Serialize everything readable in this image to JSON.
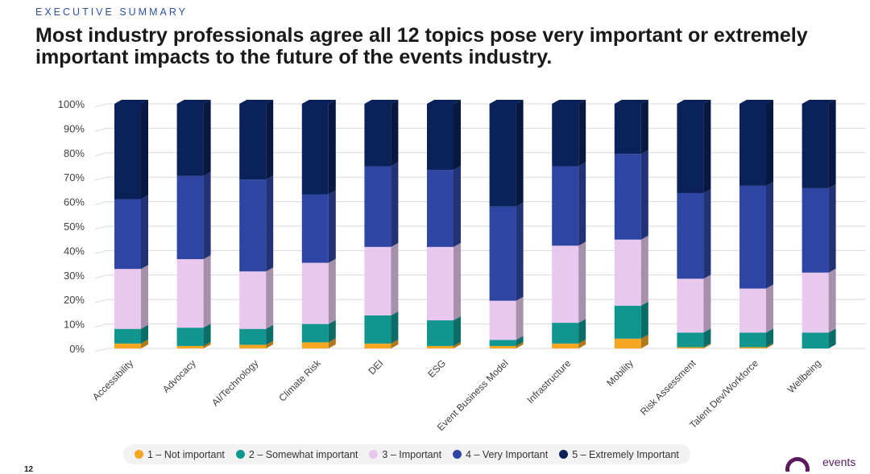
{
  "header": {
    "eyebrow": "EXECUTIVE SUMMARY",
    "headline": "Most industry professionals agree all 12 topics pose very important or extremely important impacts to the future of the events industry."
  },
  "page_number": "12",
  "logo": {
    "text": "events"
  },
  "chart_data": {
    "type": "bar",
    "stacked": true,
    "percent": true,
    "categories": [
      "Accessibility",
      "Advocacy",
      "AI/Technology",
      "Climate Risk",
      "DEI",
      "ESG",
      "Event Business Model",
      "Infrastructure",
      "Mobility",
      "Risk Assessment",
      "Talent Dev/Workforce",
      "Wellbeing"
    ],
    "y_ticks": [
      "0%",
      "10%",
      "20%",
      "30%",
      "40%",
      "50%",
      "60%",
      "70%",
      "80%",
      "90%",
      "100%"
    ],
    "ylim": [
      0,
      100
    ],
    "grid": true,
    "legend_position": "bottom",
    "series": [
      {
        "name": "1 – Not important",
        "color": "#f5a623",
        "values": [
          2,
          1,
          1.5,
          2.5,
          2,
          1,
          1,
          2,
          4,
          0.5,
          0.5,
          0
        ]
      },
      {
        "name": "2 – Somewhat important",
        "color": "#11968f",
        "values": [
          6,
          7.5,
          6.5,
          7.5,
          11.5,
          10.5,
          2.5,
          8.5,
          13.5,
          6,
          6,
          6.5
        ]
      },
      {
        "name": "3 – Important",
        "color": "#e8c8ee",
        "values": [
          24.5,
          28,
          23.5,
          25,
          28,
          30,
          16,
          31.5,
          27,
          22,
          18,
          24.5
        ]
      },
      {
        "name": "4 – Very Important",
        "color": "#2e45a3",
        "values": [
          28.5,
          34,
          37.5,
          28,
          33,
          31.5,
          38.5,
          32.5,
          35,
          35,
          42,
          34.5
        ]
      },
      {
        "name": "5 – Extremely Important",
        "color": "#0b2159",
        "values": [
          39,
          29.5,
          31,
          37,
          25.5,
          27,
          42,
          25.5,
          20.5,
          36.5,
          33.5,
          34.5
        ]
      }
    ]
  }
}
